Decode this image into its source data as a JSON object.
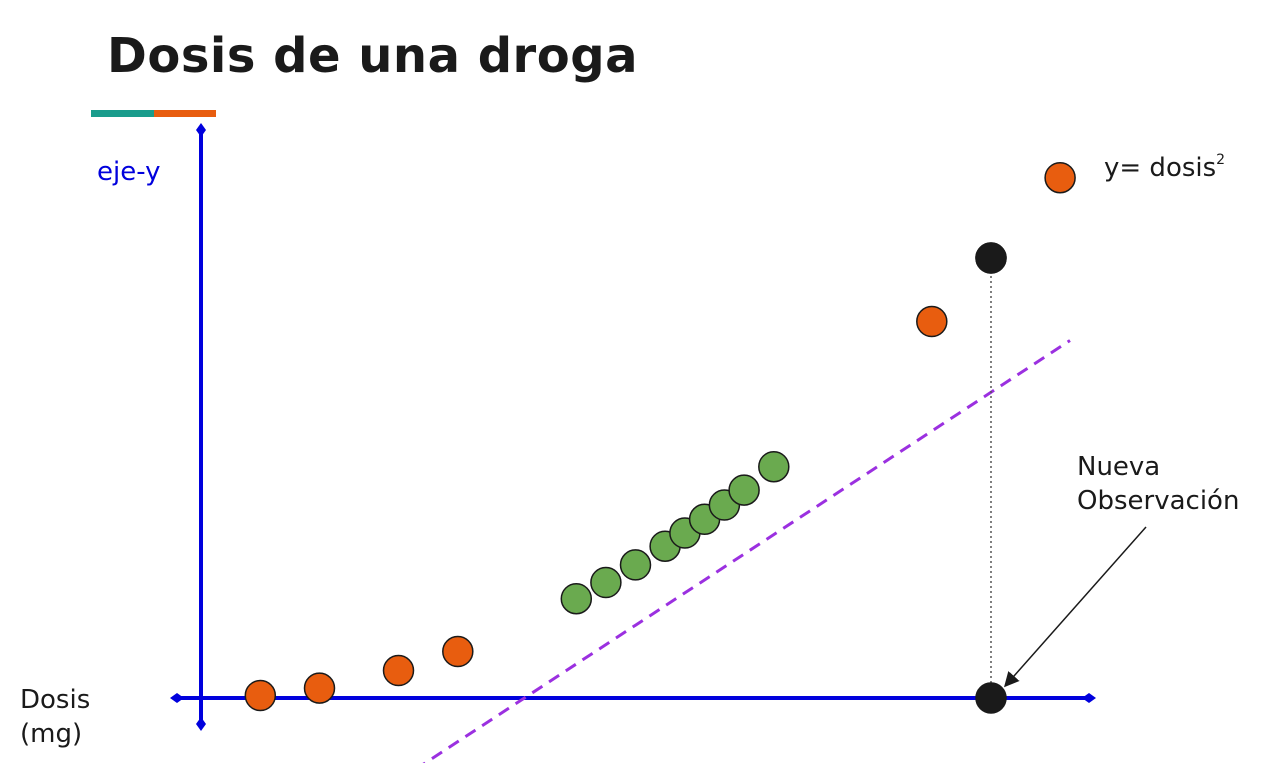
{
  "title": "Dosis de una droga",
  "axes": {
    "y_label": "eje-y",
    "x_label_line1": "Dosis",
    "x_label_line2": "(mg)",
    "axis_color": "#0000dd"
  },
  "equation": {
    "prefix": "y= dosis",
    "exponent": "2"
  },
  "new_observation": {
    "line1": "Nueva",
    "line2": "Observación"
  },
  "colors": {
    "accent_teal": "#1a9c8c",
    "accent_orange": "#e85d0f",
    "orange_points": "#e85d0f",
    "green_points": "#6aaa4f",
    "black_points": "#1a1a1a",
    "fit_line": "#9b30e0"
  },
  "chart_data": {
    "type": "scatter",
    "series": [
      {
        "group": "orange",
        "points": [
          [
            0.3,
            0.09
          ],
          [
            0.6,
            0.36
          ],
          [
            1.0,
            1.0
          ],
          [
            1.3,
            1.69
          ],
          [
            3.7,
            13.69
          ],
          [
            4.0,
            16.0
          ],
          [
            4.35,
            18.92
          ]
        ]
      },
      {
        "group": "green",
        "points": [
          [
            1.9,
            3.61
          ],
          [
            2.05,
            4.2
          ],
          [
            2.2,
            4.84
          ],
          [
            2.35,
            5.52
          ],
          [
            2.45,
            6.0
          ],
          [
            2.55,
            6.5
          ],
          [
            2.65,
            7.02
          ],
          [
            2.75,
            7.56
          ],
          [
            2.9,
            8.41
          ]
        ]
      },
      {
        "group": "new-observation",
        "points": [
          [
            4.0,
            0
          ],
          [
            4.0,
            16.0
          ]
        ]
      }
    ],
    "fit_line": {
      "style": "dashed",
      "from": [
        1.0,
        -3.0
      ],
      "to": [
        4.4,
        13.0
      ]
    }
  }
}
